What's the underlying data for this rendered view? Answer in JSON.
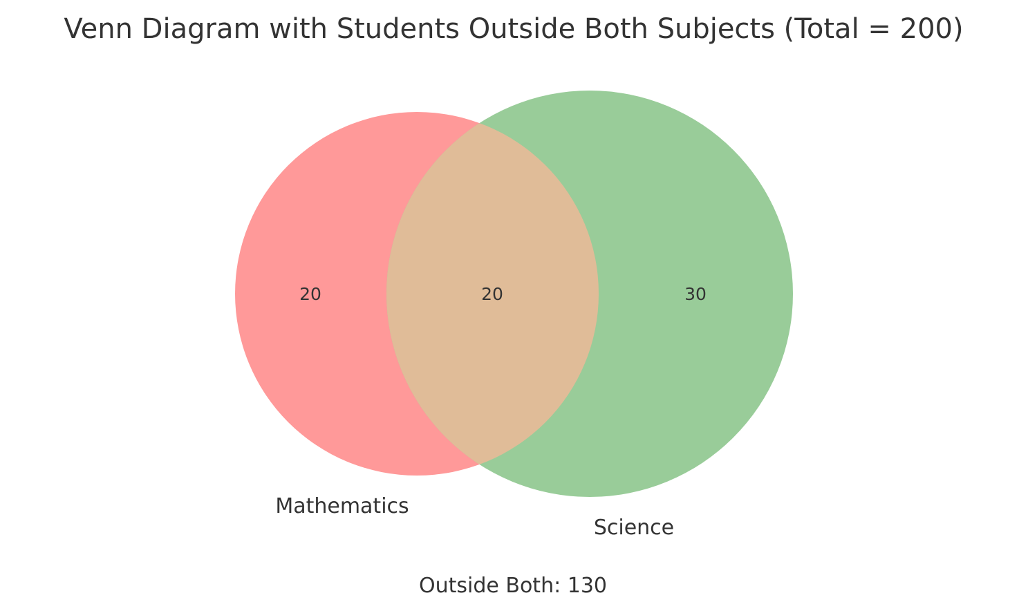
{
  "title": "Venn Diagram with Students Outside Both Subjects (Total = 200)",
  "sets": [
    {
      "name": "Mathematics",
      "only_count": "20",
      "color": "#ff9999"
    },
    {
      "name": "Science",
      "only_count": "30",
      "color": "#99cc99"
    }
  ],
  "intersection": {
    "count": "20",
    "color": "#e0bc98"
  },
  "outside": {
    "label": "Outside Both: 130",
    "count": 130
  },
  "total": 200
}
